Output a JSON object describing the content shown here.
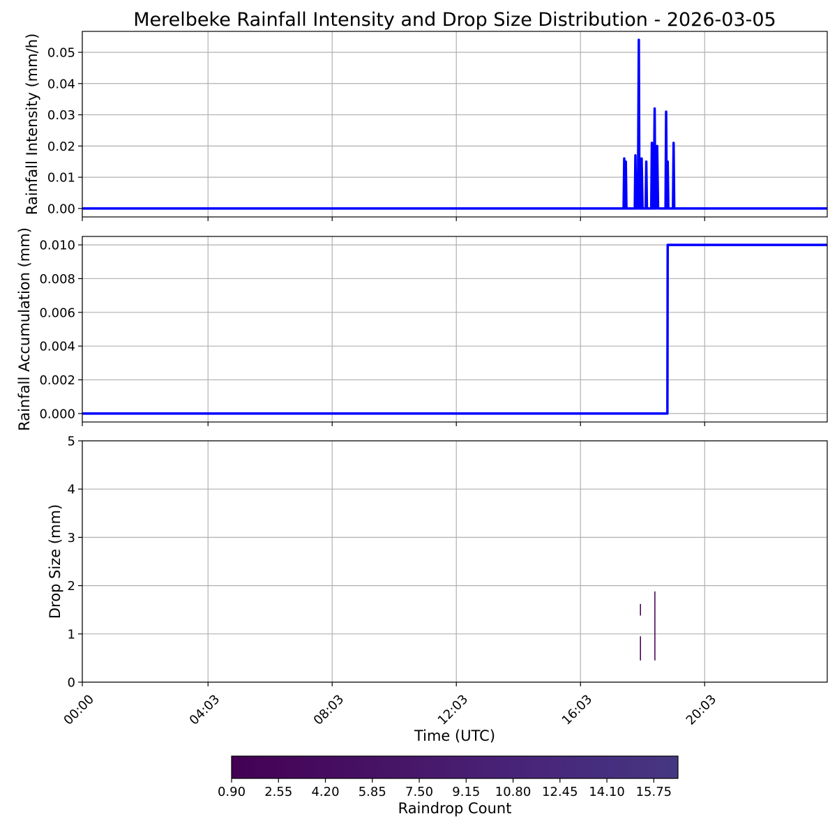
{
  "chart_data": {
    "title": "Merelbeke Rainfall Intensity and Drop Size Distribution - 2026-03-05",
    "xlabel": "Time (UTC)",
    "x_tick_labels": [
      "00:00",
      "04:03",
      "08:03",
      "12:03",
      "16:03",
      "20:03"
    ],
    "x_tick_hours": [
      0,
      4.05,
      8.05,
      12.05,
      16.05,
      20.05
    ],
    "xlim_hours": [
      0,
      24
    ],
    "grid": true,
    "line_color": "#0000ff",
    "panels": [
      {
        "type": "line",
        "ylabel": "Rainfall Intensity (mm/h)",
        "ylim": [
          -0.0027,
          0.0567
        ],
        "y_ticks": [
          0.0,
          0.01,
          0.02,
          0.03,
          0.04,
          0.05
        ],
        "y_tick_labels": [
          "0.00",
          "0.01",
          "0.02",
          "0.03",
          "0.04",
          "0.05"
        ],
        "series": [
          {
            "x": [
              0,
              17.44,
              17.46,
              17.48,
              17.51,
              17.53,
              17.55,
              17.57,
              17.8,
              17.82,
              17.84,
              17.9,
              17.93,
              17.95,
              17.97,
              18.0,
              18.02,
              18.05,
              18.07,
              18.09,
              18.1,
              18.15,
              18.17,
              18.19,
              18.33,
              18.35,
              18.37,
              18.41,
              18.44,
              18.46,
              18.49,
              18.52,
              18.55,
              18.57,
              18.58,
              18.6,
              18.62,
              18.65,
              18.67,
              18.79,
              18.81,
              18.83,
              18.84,
              18.86,
              18.88,
              19.03,
              19.05,
              19.07,
              24
            ],
            "y": [
              0,
              0,
              0.016,
              0,
              0.015,
              0,
              0,
              0,
              0,
              0.017,
              0,
              0,
              0.054,
              0,
              0,
              0,
              0.016,
              0,
              0,
              0,
              0,
              0,
              0.015,
              0,
              0,
              0.021,
              0,
              0,
              0.032,
              0,
              0,
              0.02,
              0,
              0,
              0,
              0,
              0,
              0,
              0,
              0,
              0.031,
              0,
              0,
              0.015,
              0,
              0,
              0.021,
              0,
              0
            ]
          }
        ]
      },
      {
        "type": "line",
        "ylabel": "Rainfall Accumulation (mm)",
        "ylim": [
          -0.0005,
          0.0105
        ],
        "y_ticks": [
          0.0,
          0.002,
          0.004,
          0.006,
          0.008,
          0.01
        ],
        "y_tick_labels": [
          "0.000",
          "0.002",
          "0.004",
          "0.006",
          "0.008",
          "0.010"
        ],
        "series": [
          {
            "x": [
              0,
              18.85,
              18.86,
              24
            ],
            "y": [
              0,
              0,
              0.01,
              0.01
            ]
          }
        ]
      },
      {
        "type": "heatmap",
        "ylabel": "Drop Size (mm)",
        "ylim": [
          0,
          5
        ],
        "y_ticks": [
          0,
          1,
          2,
          3,
          4,
          5
        ],
        "y_tick_labels": [
          "0",
          "1",
          "2",
          "3",
          "4",
          "5"
        ],
        "cells": [
          {
            "x0": 17.965,
            "x1": 18.0,
            "y0": 0.45,
            "y1": 0.95,
            "count": 1
          },
          {
            "x0": 17.965,
            "x1": 18.0,
            "y0": 1.38,
            "y1": 1.62,
            "count": 1
          },
          {
            "x0": 18.43,
            "x1": 18.465,
            "y0": 0.45,
            "y1": 1.88,
            "count": 2
          }
        ]
      }
    ],
    "colorbar": {
      "label": "Raindrop Count",
      "range": [
        0.9,
        16.6
      ],
      "tick_values": [
        0.9,
        2.55,
        4.2,
        5.85,
        7.5,
        9.15,
        10.8,
        12.45,
        14.1,
        15.75
      ],
      "tick_labels": [
        "0.90",
        "2.55",
        "4.20",
        "5.85",
        "7.50",
        "9.15",
        "10.80",
        "12.45",
        "14.10",
        "15.75"
      ],
      "colors": [
        "#440154",
        "#471365",
        "#48257a",
        "#453781"
      ],
      "orientation": "horizontal",
      "placement": "bottom"
    }
  }
}
